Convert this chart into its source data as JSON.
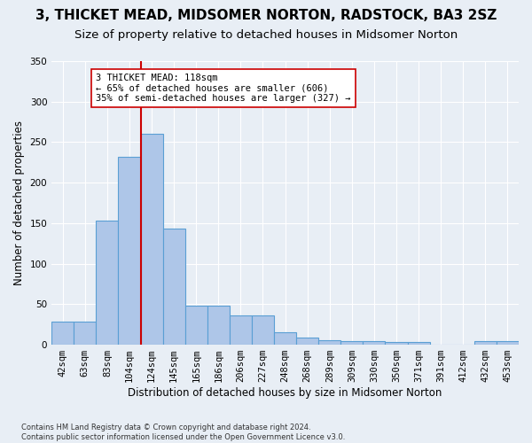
{
  "title": "3, THICKET MEAD, MIDSOMER NORTON, RADSTOCK, BA3 2SZ",
  "subtitle": "Size of property relative to detached houses in Midsomer Norton",
  "xlabel": "Distribution of detached houses by size in Midsomer Norton",
  "ylabel": "Number of detached properties",
  "footnote": "Contains HM Land Registry data © Crown copyright and database right 2024.\nContains public sector information licensed under the Open Government Licence v3.0.",
  "bar_values": [
    28,
    28,
    153,
    232,
    260,
    143,
    48,
    48,
    36,
    36,
    15,
    9,
    6,
    5,
    5,
    3,
    3,
    0,
    0,
    4,
    4
  ],
  "categories": [
    "42sqm",
    "63sqm",
    "83sqm",
    "104sqm",
    "124sqm",
    "145sqm",
    "165sqm",
    "186sqm",
    "206sqm",
    "227sqm",
    "248sqm",
    "268sqm",
    "289sqm",
    "309sqm",
    "330sqm",
    "350sqm",
    "371sqm",
    "391sqm",
    "412sqm",
    "432sqm",
    "453sqm"
  ],
  "bar_color": "#aec6e8",
  "bar_edge_color": "#5a9fd4",
  "vline_x_index": 4,
  "vline_color": "#cc0000",
  "annotation_text": "3 THICKET MEAD: 118sqm\n← 65% of detached houses are smaller (606)\n35% of semi-detached houses are larger (327) →",
  "annotation_box_color": "#ffffff",
  "annotation_box_edge_color": "#cc0000",
  "ylim": [
    0,
    350
  ],
  "yticks": [
    0,
    50,
    100,
    150,
    200,
    250,
    300,
    350
  ],
  "bg_color": "#e8eef5",
  "plot_bg_color": "#e8eef5",
  "grid_color": "#ffffff",
  "title_fontsize": 11,
  "subtitle_fontsize": 9.5,
  "tick_fontsize": 7.5,
  "ylabel_fontsize": 8.5,
  "xlabel_fontsize": 8.5
}
